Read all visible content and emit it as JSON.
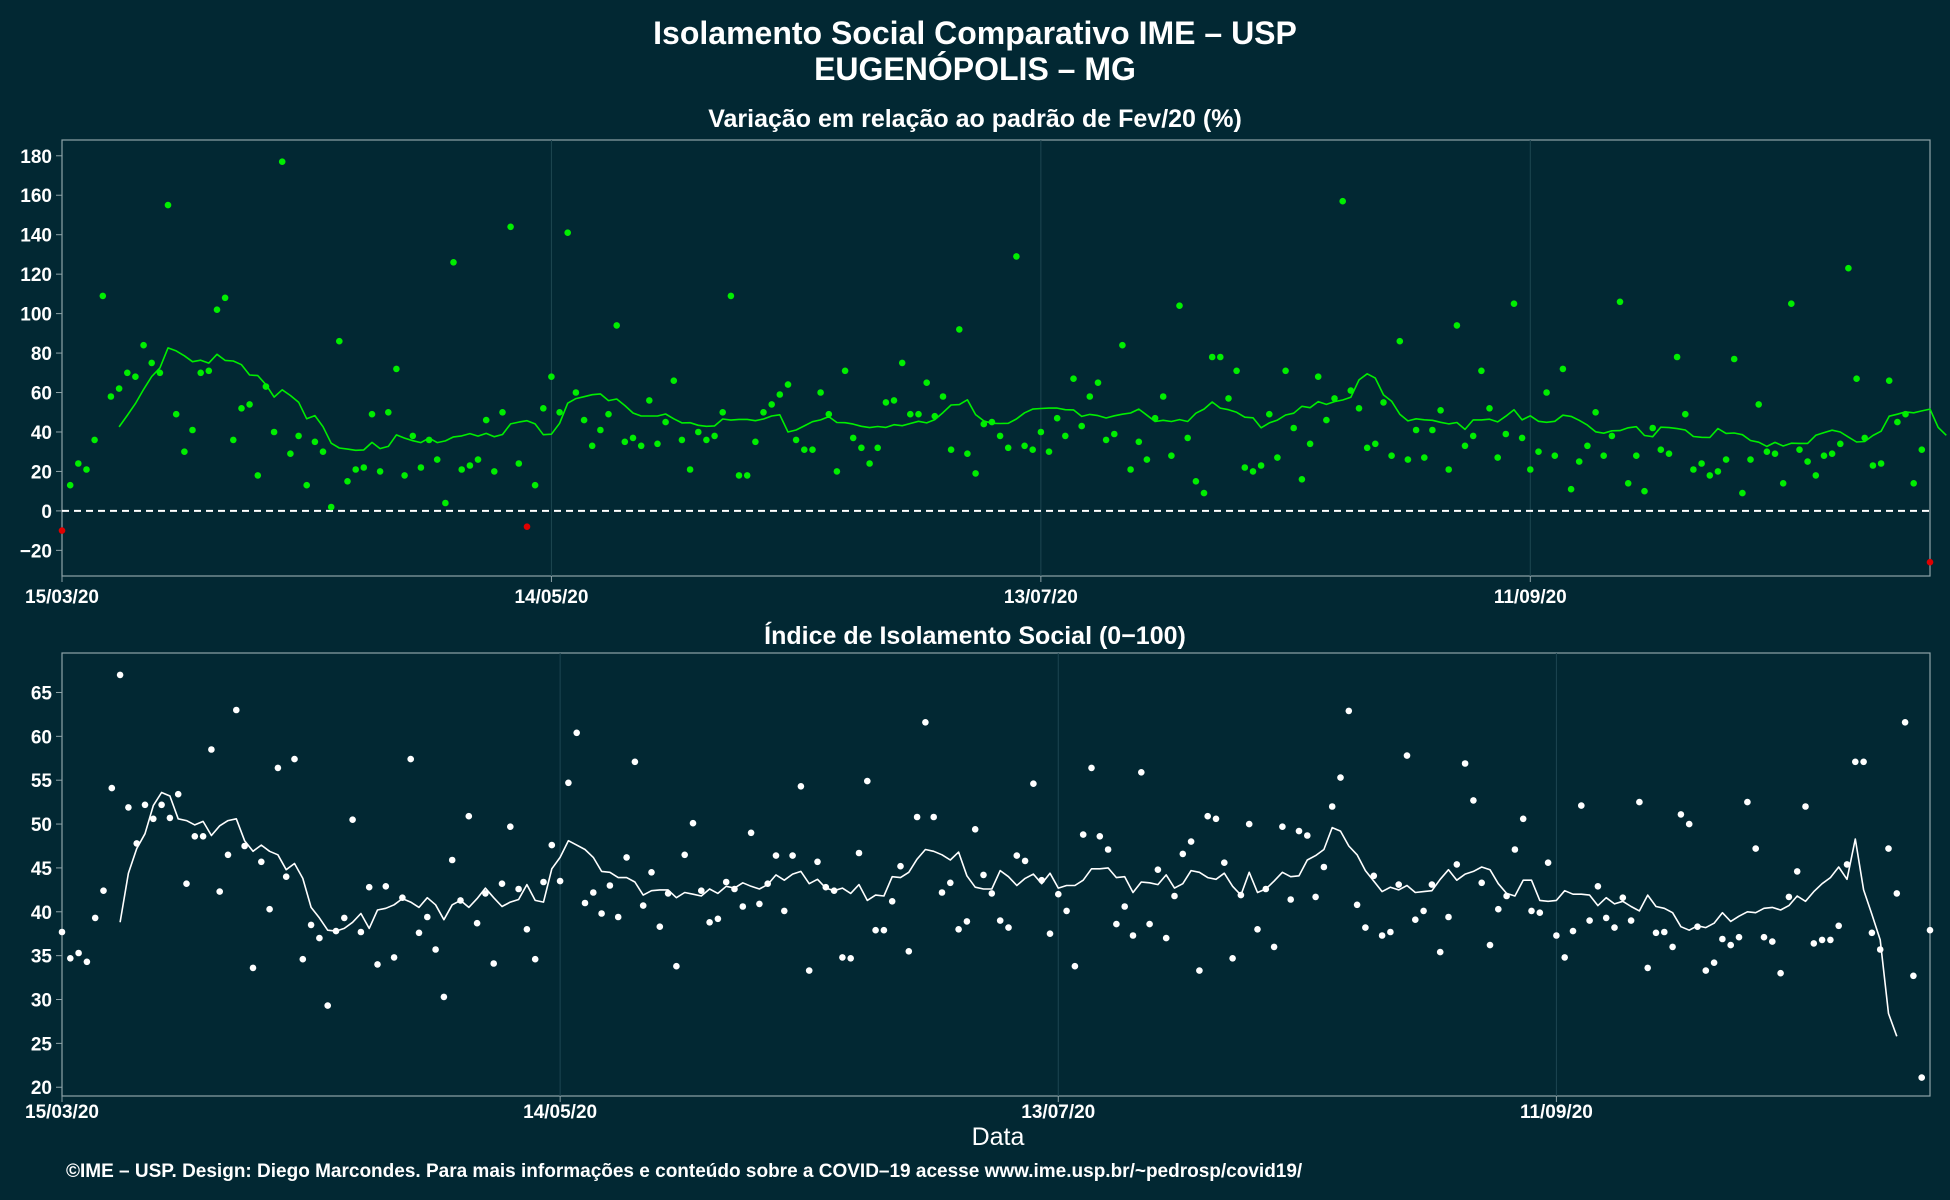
{
  "title_line1": "Isolamento Social Comparativo IME – USP",
  "title_line2": "EUGENÓPOLIS – MG",
  "x_axis_label": "Data",
  "caption": "©IME – USP. Design: Diego Marcondes. Para mais informações e conteúdo sobre a COVID–19 acesse www.ime.usp.br/~pedrosp/covid19/",
  "colors": {
    "background": "#022833",
    "panel_border": "#8fa3a8",
    "grid": "#1d4651",
    "top_points": "#00ee00",
    "top_points_negative": "#e00000",
    "top_line": "#00ee00",
    "bottom_points": "#ffffff",
    "bottom_line": "#ffffff",
    "zero_line": "#ffffff"
  },
  "chart_data": [
    {
      "type": "scatter",
      "title": "Variação em relação ao padrão de Fev/20 (%)",
      "x_start_date": "15/03/20",
      "x_end_date": "25/11/20",
      "x_tick_labels": [
        "15/03/20",
        "14/05/20",
        "13/07/20",
        "11/09/20"
      ],
      "y_tick_labels": [
        "−20",
        "0",
        "20",
        "40",
        "60",
        "80",
        "100",
        "120",
        "140",
        "160",
        "180"
      ],
      "y_ticks": [
        -20,
        0,
        20,
        40,
        60,
        80,
        100,
        120,
        140,
        160,
        180
      ],
      "ylim": [
        -33,
        188
      ],
      "reference_line": {
        "y": 0,
        "style": "dashed"
      },
      "series": [
        {
          "kind": "points",
          "values": [
            -10,
            13,
            24,
            21,
            36,
            109,
            58,
            62,
            70,
            68,
            84,
            75,
            70,
            155,
            49,
            30,
            41,
            70,
            71,
            102,
            108,
            36,
            52,
            54,
            18,
            63,
            40,
            177,
            29,
            38,
            13,
            35,
            30,
            2,
            86,
            15,
            21,
            22,
            49,
            20,
            50,
            72,
            18,
            38,
            22,
            36,
            26,
            4,
            126,
            21,
            23,
            26,
            46,
            20,
            50,
            144,
            24,
            -8,
            13,
            52,
            68,
            50,
            141,
            60,
            46,
            33,
            41,
            49,
            94,
            35,
            37,
            33,
            56,
            34,
            45,
            66,
            36,
            21,
            40,
            36,
            38,
            50,
            109,
            18,
            18,
            35,
            50,
            54,
            59,
            64,
            36,
            31,
            31,
            60,
            49,
            20,
            71,
            37,
            32,
            24,
            32,
            55,
            56,
            75,
            49,
            49,
            65,
            48,
            58,
            31,
            92,
            29,
            19,
            44,
            45,
            38,
            32,
            129,
            33,
            31,
            40,
            30,
            47,
            38,
            67,
            43,
            58,
            65,
            36,
            39,
            84,
            21,
            35,
            26,
            47,
            58,
            28,
            104,
            37,
            15,
            9,
            78,
            78,
            57,
            71,
            22,
            20,
            23,
            49,
            27,
            71,
            42,
            16,
            34,
            68,
            46,
            57,
            157,
            61,
            52,
            32,
            34,
            55,
            28,
            86,
            26,
            41,
            27,
            41,
            51,
            21,
            94,
            33,
            38,
            71,
            52,
            27,
            39,
            105,
            37,
            21,
            30,
            60,
            28,
            72,
            11,
            25,
            33,
            50,
            28,
            38,
            106,
            14,
            28,
            10,
            42,
            31,
            29,
            78,
            49,
            21,
            24,
            18,
            20,
            26,
            77,
            9,
            26,
            54,
            30,
            29,
            14,
            105,
            31,
            25,
            18,
            28,
            29,
            34,
            123,
            67,
            37,
            23,
            24,
            66,
            45,
            49,
            14,
            31,
            -26
          ]
        },
        {
          "kind": "moving_average",
          "values": [
            null,
            null,
            null,
            null,
            null,
            null,
            null,
            42.6,
            48.4,
            54.4,
            61.6,
            68.1,
            72.5,
            82.6,
            81.1,
            78.6,
            75.6,
            76.4,
            74.9,
            79.4,
            76.3,
            76.0,
            74.1,
            68.9,
            68.6,
            64.0,
            57.7,
            61.4,
            58.5,
            55.1,
            46.7,
            48.3,
            42.7,
            34.3,
            31.9,
            31.3,
            30.7,
            30.9,
            34.7,
            31.6,
            32.7,
            38.5,
            36.9,
            35.6,
            34.6,
            36.9,
            34.6,
            35.5,
            37.5,
            38.0,
            39.2,
            37.9,
            39.3,
            37.6,
            38.7,
            44.1,
            45.0,
            45.7,
            44.1,
            38.6,
            38.9,
            44.4,
            54.6,
            56.9,
            57.9,
            58.9,
            59.3,
            55.9,
            56.7,
            53.4,
            49.6,
            48.1,
            48.1,
            48.1,
            49.1,
            46.7,
            44.6,
            44.7,
            43.4,
            42.9,
            43.1,
            46.6,
            46.0,
            46.4,
            46.4,
            45.7,
            46.6,
            48.1,
            48.7,
            40.0,
            41.0,
            43.1,
            45.2,
            46.1,
            47.8,
            44.8,
            44.7,
            44.0,
            42.9,
            42.2,
            42.8,
            42.3,
            43.7,
            43.2,
            44.3,
            45.4,
            44.6,
            46.3,
            49.8,
            53.7,
            53.9,
            56.3,
            48.8,
            45.6,
            44.4,
            44.3,
            44.4,
            46.6,
            49.7,
            51.6,
            51.9,
            52.1,
            52.1,
            51.3,
            51.2,
            47.9,
            48.9,
            48.3,
            47.1,
            48.2,
            49.0,
            49.6,
            51.6,
            48.5,
            45.3,
            45.9,
            45.3,
            46.3,
            45.3,
            49.5,
            51.6,
            55.2,
            52.1,
            51.3,
            50.0,
            47.5,
            47.2,
            42.1,
            44.6,
            46.0,
            48.6,
            49.5,
            53.0,
            52.3,
            55.4,
            54.0,
            55.4,
            56.2,
            57.6,
            66.4,
            69.5,
            67.3,
            58.8,
            55.6,
            49.0,
            45.6,
            46.7,
            46.2,
            45.9,
            44.9,
            44.1,
            44.8,
            41.3,
            46.1,
            46.1,
            46.5,
            45.1,
            48.0,
            51.3,
            46.1,
            48.2,
            45.4,
            44.9,
            45.4,
            48.5,
            47.9,
            45.9,
            43.5,
            40.1,
            39.4,
            40.6,
            40.7,
            42.1,
            42.7,
            38.2,
            37.6,
            42.4,
            42.2,
            41.7,
            41.0,
            37.7,
            37.3,
            37.2,
            41.7,
            39.3,
            39.5,
            38.6,
            35.7,
            34.8,
            32.7,
            34.7,
            32.9,
            34.3,
            34.2,
            34.2,
            38.3,
            39.7,
            40.9,
            40.0,
            37.4,
            34.9,
            35.2,
            38.2,
            40.4,
            48.0,
            49.0,
            50.2,
            49.7,
            50.7,
            51.6,
            42.3,
            38.3,
            null,
            null,
            null
          ]
        }
      ]
    },
    {
      "type": "scatter",
      "title": "Índice de Isolamento Social (0−100)",
      "x_start_date": "15/03/20",
      "x_end_date": "25/11/20",
      "x_tick_labels": [
        "15/03/20",
        "14/05/20",
        "13/07/20",
        "11/09/20"
      ],
      "y_tick_labels": [
        "20",
        "25",
        "30",
        "35",
        "40",
        "45",
        "50",
        "55",
        "60",
        "65"
      ],
      "y_ticks": [
        20,
        25,
        30,
        35,
        40,
        45,
        50,
        55,
        60,
        65
      ],
      "ylim": [
        19,
        69.5
      ],
      "series": [
        {
          "kind": "points",
          "values": [
            37.7,
            34.7,
            35.3,
            34.3,
            39.3,
            42.4,
            54.1,
            67,
            51.9,
            47.8,
            52.2,
            50.6,
            52.2,
            50.7,
            53.4,
            43.2,
            48.6,
            48.6,
            58.5,
            42.3,
            46.5,
            63,
            47.5,
            33.6,
            45.7,
            40.3,
            56.4,
            44,
            57.4,
            34.6,
            38.5,
            37,
            29.3,
            37.8,
            39.3,
            50.5,
            37.7,
            42.8,
            34,
            42.9,
            34.8,
            41.6,
            57.4,
            37.6,
            39.4,
            35.7,
            30.3,
            45.9,
            41.3,
            50.9,
            38.7,
            42.1,
            34.1,
            43.2,
            49.7,
            42.6,
            38,
            34.6,
            43.4,
            47.6,
            43.5,
            54.7,
            60.4,
            41,
            42.2,
            39.8,
            43,
            39.4,
            46.2,
            57.1,
            40.7,
            44.5,
            38.3,
            42.1,
            33.8,
            46.5,
            50.1,
            42.4,
            38.8,
            39.2,
            43.4,
            42.6,
            40.6,
            49,
            40.9,
            43.2,
            46.4,
            40.1,
            46.4,
            54.3,
            33.3,
            45.7,
            42.8,
            42.4,
            34.8,
            34.7,
            46.7,
            54.9,
            37.9,
            37.9,
            41.2,
            45.2,
            35.5,
            50.8,
            61.6,
            50.8,
            42.2,
            43.3,
            38,
            38.9,
            49.4,
            44.2,
            42.1,
            39,
            38.2,
            46.4,
            45.8,
            54.6,
            43.6,
            37.5,
            42,
            40.1,
            33.8,
            48.8,
            56.4,
            48.6,
            47.1,
            38.6,
            40.6,
            37.3,
            55.9,
            38.6,
            44.8,
            37,
            41.8,
            46.6,
            48,
            33.3,
            50.9,
            50.6,
            45.6,
            34.7,
            41.9,
            50,
            38,
            42.6,
            36,
            49.7,
            41.4,
            49.2,
            48.7,
            41.7,
            45.1,
            52,
            55.3,
            62.9,
            40.8,
            38.2,
            44.1,
            37.3,
            37.7,
            43.1,
            57.8,
            39.1,
            40.1,
            43.1,
            35.4,
            39.4,
            45.4,
            56.9,
            52.7,
            43.3,
            36.2,
            40.3,
            41.8,
            47.1,
            50.6,
            40.1,
            39.9,
            45.6,
            37.3,
            34.8,
            37.8,
            52.1,
            39,
            42.9,
            39.3,
            38.2,
            41.6,
            39,
            52.5,
            33.6,
            37.6,
            37.7,
            36,
            51.1,
            50,
            38.3,
            33.3,
            34.2,
            36.9,
            36.2,
            37.1,
            52.5,
            47.2,
            37.1,
            36.6,
            33,
            41.7,
            44.6,
            52,
            36.4,
            36.8,
            36.8,
            38.4,
            45.4,
            57.1,
            57.1,
            37.6,
            35.7,
            47.2,
            42.1,
            61.6,
            32.7,
            21.1,
            37.9
          ]
        },
        {
          "kind": "moving_average",
          "values": [
            null,
            null,
            null,
            null,
            null,
            null,
            null,
            38.8,
            44.4,
            47.2,
            48.9,
            52.1,
            53.6,
            53.2,
            50.6,
            50.4,
            49.9,
            50.3,
            48.7,
            49.8,
            50.4,
            50.6,
            48.1,
            46.9,
            47.6,
            46.9,
            46.5,
            44.8,
            45.5,
            43.8,
            40.5,
            39.3,
            37.9,
            37.8,
            38.1,
            38.8,
            39.8,
            38.1,
            40.2,
            40.4,
            40.8,
            41.5,
            41.1,
            40.5,
            41.6,
            40.8,
            39.1,
            40.8,
            41.3,
            40.5,
            41.5,
            42.7,
            41.6,
            40.6,
            41.1,
            41.4,
            43.1,
            41.3,
            41.1,
            44.9,
            46.2,
            48.1,
            47.6,
            47.1,
            46.2,
            44.6,
            44.5,
            43.9,
            43.9,
            43.4,
            41.9,
            42.4,
            42.5,
            42.5,
            41.6,
            42.2,
            42.0,
            41.8,
            42.6,
            42.1,
            42.9,
            42.7,
            43.3,
            42.9,
            42.6,
            43.1,
            44.2,
            43.6,
            44.3,
            44.6,
            43.2,
            43.7,
            42.7,
            42.4,
            42.7,
            42.1,
            43.1,
            41.3,
            41.9,
            41.8,
            44.0,
            43.9,
            44.5,
            46.0,
            47.1,
            46.9,
            46.5,
            45.9,
            46.8,
            44.1,
            42.8,
            42.6,
            42.6,
            44.7,
            44.0,
            43.0,
            43.8,
            44.3,
            43.2,
            44.4,
            42.7,
            43.0,
            43.0,
            43.6,
            44.9,
            44.9,
            45.0,
            43.9,
            44.0,
            42.2,
            43.4,
            43.3,
            43.1,
            44.2,
            42.7,
            43.2,
            44.7,
            44.5,
            43.9,
            43.7,
            44.4,
            42.9,
            41.9,
            44.5,
            42.2,
            42.6,
            43.5,
            44.5,
            44.0,
            44.1,
            45.9,
            46.4,
            47.1,
            49.6,
            49.2,
            47.5,
            46.5,
            44.7,
            43.5,
            42.3,
            42.8,
            42.5,
            43.0,
            42.2,
            42.3,
            42.4,
            43.7,
            44.8,
            43.6,
            44.3,
            44.6,
            45.1,
            44.8,
            43.2,
            42.1,
            41.8,
            43.6,
            43.6,
            41.3,
            41.2,
            41.3,
            42.4,
            42.0,
            42.0,
            41.9,
            40.7,
            41.6,
            40.9,
            41.2,
            40.6,
            40.1,
            41.9,
            40.6,
            40.4,
            39.9,
            38.3,
            37.9,
            38.4,
            38.2,
            38.7,
            39.9,
            38.9,
            39.5,
            40.0,
            39.9,
            40.4,
            40.5,
            40.2,
            40.7,
            41.8,
            41.2,
            42.3,
            43.2,
            43.9,
            45.1,
            43.7,
            48.3,
            42.5,
            39.7,
            36.8,
            28.4,
            25.8,
            null,
            null
          ]
        }
      ]
    }
  ]
}
